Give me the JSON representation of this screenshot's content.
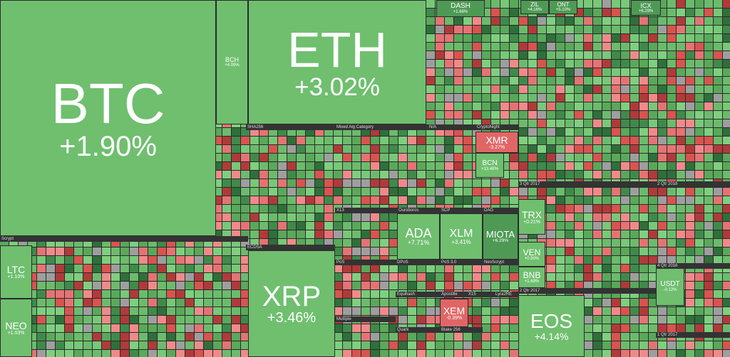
{
  "tiles": [
    {
      "label": "BTC",
      "change": "+1.90%"
    },
    {
      "label": "BCH",
      "change": "+4.09%"
    },
    {
      "label": "ETH",
      "change": "+3.02%"
    },
    {
      "label": "DASH",
      "change": "+1.66%"
    },
    {
      "label": "ZIL",
      "change": "+4.16%"
    },
    {
      "label": "ONT",
      "change": "+5.10%"
    },
    {
      "label": "ICX",
      "change": "+6.29%"
    },
    {
      "label": "XMR",
      "change": "-3.27%"
    },
    {
      "label": "BCN",
      "change": "+13.48%"
    },
    {
      "label": "ADA",
      "change": "+7.71%"
    },
    {
      "label": "XLM",
      "change": "+3.41%"
    },
    {
      "label": "MIOTA",
      "change": "+6.29%"
    },
    {
      "label": "TRX",
      "change": "+0.21%"
    },
    {
      "label": "VEN",
      "change": "+0.90%"
    },
    {
      "label": "BNB",
      "change": "+1.69%"
    },
    {
      "label": "XEM",
      "change": "-0.39%"
    },
    {
      "label": "EOS",
      "change": "+4.14%"
    },
    {
      "label": "XRP",
      "change": "+3.46%"
    },
    {
      "label": "LTC",
      "change": "+1.10%"
    },
    {
      "label": "NEO",
      "change": "+1.03%"
    },
    {
      "label": "USDT",
      "change": "-0.12%"
    }
  ],
  "groups": [
    "Scrypt",
    "SHA256",
    "Mixed Alg Category",
    "N/A",
    "CryptoNight",
    "X13",
    "Ouroboros",
    "SCP",
    "DAG",
    "ECDSA",
    "PoS",
    "DPoS",
    "PoS 3.0",
    "NeoScrypt",
    "Equihash",
    "Apostille",
    "X15",
    "Lyra2RE",
    "Multiple",
    "Quark",
    "Blake 256",
    "3 Qtr 2017",
    "2 Qtr 2018",
    "4 Qtr 2016",
    "2 Qtr 2017",
    "1 Qtr 2017"
  ]
}
